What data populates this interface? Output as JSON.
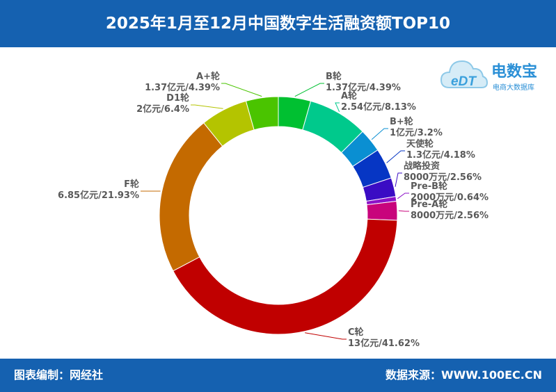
{
  "header": {
    "title": "2025年1月至12月中国数字生活融资额TOP10"
  },
  "footer": {
    "source_left": "图表编制：网经社",
    "source_right": "数据来源：WWW.100EC.CN"
  },
  "logo": {
    "mark": "eDT",
    "name": "电数宝",
    "tagline": "电商大数据库"
  },
  "colors": {
    "brand": "#1561b0"
  },
  "chart_data": {
    "type": "pie",
    "donut": true,
    "title": "2025年1月至12月中国数字生活融资额TOP10",
    "unit": "亿元",
    "slices": [
      {
        "name": "B轮",
        "value_text": "1.37亿元",
        "value": 1.37,
        "percent": 4.39,
        "percent_text": "4.39%",
        "color": "#00c031"
      },
      {
        "name": "A轮",
        "value_text": "2.54亿元",
        "value": 2.54,
        "percent": 8.13,
        "percent_text": "8.13%",
        "color": "#00c98c"
      },
      {
        "name": "B+轮",
        "value_text": "1亿元",
        "value": 1.0,
        "percent": 3.2,
        "percent_text": "3.2%",
        "color": "#0a8fd2"
      },
      {
        "name": "天使轮",
        "value_text": "1.3亿元",
        "value": 1.3,
        "percent": 4.18,
        "percent_text": "4.18%",
        "color": "#0636c4"
      },
      {
        "name": "战略投资",
        "value_text": "8000万元",
        "value": 0.8,
        "percent": 2.56,
        "percent_text": "2.56%",
        "color": "#3a0cc4"
      },
      {
        "name": "Pre-B轮",
        "value_text": "2000万元",
        "value": 0.2,
        "percent": 0.64,
        "percent_text": "0.64%",
        "color": "#8c12c8"
      },
      {
        "name": "Pre-A轮",
        "value_text": "8000万元",
        "value": 0.8,
        "percent": 2.56,
        "percent_text": "2.56%",
        "color": "#c8047c"
      },
      {
        "name": "C轮",
        "value_text": "13亿元",
        "value": 13,
        "percent": 41.62,
        "percent_text": "41.62%",
        "color": "#c00000"
      },
      {
        "name": "F轮",
        "value_text": "6.85亿元",
        "value": 6.85,
        "percent": 21.93,
        "percent_text": "21.93%",
        "color": "#c46a00"
      },
      {
        "name": "D1轮",
        "value_text": "2亿元",
        "value": 2,
        "percent": 6.4,
        "percent_text": "6.4%",
        "color": "#b4c400"
      },
      {
        "name": "A+轮",
        "value_text": "1.37亿元",
        "value": 1.37,
        "percent": 4.39,
        "percent_text": "4.39%",
        "color": "#4ac400"
      }
    ]
  }
}
